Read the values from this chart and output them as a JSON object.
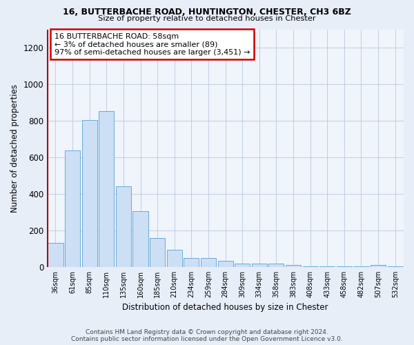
{
  "title1": "16, BUTTERBACHE ROAD, HUNTINGTON, CHESTER, CH3 6BZ",
  "title2": "Size of property relative to detached houses in Chester",
  "xlabel": "Distribution of detached houses by size in Chester",
  "ylabel": "Number of detached properties",
  "categories": [
    "36sqm",
    "61sqm",
    "85sqm",
    "110sqm",
    "135sqm",
    "160sqm",
    "185sqm",
    "210sqm",
    "234sqm",
    "259sqm",
    "284sqm",
    "309sqm",
    "334sqm",
    "358sqm",
    "383sqm",
    "408sqm",
    "433sqm",
    "458sqm",
    "482sqm",
    "507sqm",
    "532sqm"
  ],
  "values": [
    130,
    638,
    803,
    851,
    440,
    305,
    158,
    93,
    50,
    47,
    35,
    18,
    20,
    18,
    10,
    5,
    3,
    2,
    2,
    10,
    2
  ],
  "bar_color": "#ccdff5",
  "bar_edge_color": "#6aaad4",
  "property_line_color": "#aa0000",
  "annotation_text": "16 BUTTERBACHE ROAD: 58sqm\n← 3% of detached houses are smaller (89)\n97% of semi-detached houses are larger (3,451) →",
  "annotation_box_facecolor": "#ffffff",
  "annotation_box_edgecolor": "#cc0000",
  "ylim": [
    0,
    1300
  ],
  "yticks": [
    0,
    200,
    400,
    600,
    800,
    1000,
    1200
  ],
  "footer1": "Contains HM Land Registry data © Crown copyright and database right 2024.",
  "footer2": "Contains public sector information licensed under the Open Government Licence v3.0.",
  "bg_color": "#e8eef8",
  "plot_bg_color": "#f0f4fb"
}
